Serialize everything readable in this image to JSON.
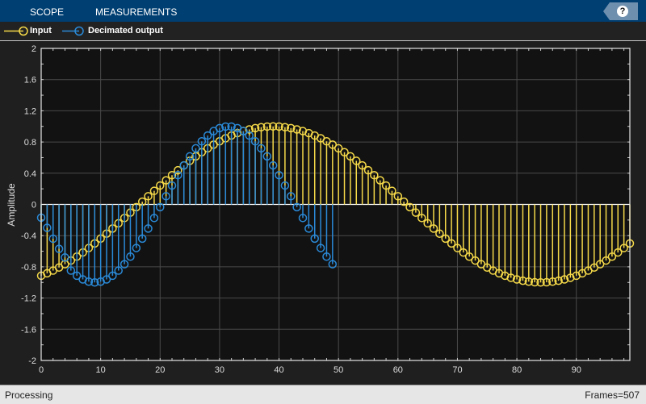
{
  "toolbar": {
    "tabs": [
      {
        "label": "SCOPE"
      },
      {
        "label": "MEASUREMENTS"
      }
    ],
    "help_label": "?"
  },
  "legend": {
    "items": [
      {
        "label": "Input",
        "color": "#f5d949"
      },
      {
        "label": "Decimated output",
        "color": "#2a8ad8"
      }
    ]
  },
  "status": {
    "left": "Processing",
    "right": "Frames=507"
  },
  "chart_data": {
    "type": "stem",
    "ylabel": "Amplitude",
    "xlim": [
      0,
      99
    ],
    "ylim": [
      -2,
      2
    ],
    "xticks": [
      0,
      10,
      20,
      30,
      40,
      50,
      60,
      70,
      80,
      90
    ],
    "yticks": [
      -2,
      -1.6,
      -1.2,
      -0.8,
      -0.4,
      0,
      0.4,
      0.8,
      1.2,
      1.6,
      2
    ],
    "grid": true,
    "legend_placement": "top",
    "series": [
      {
        "name": "Input",
        "color": "#f5d949",
        "values": [
          -0.914,
          -0.883,
          -0.848,
          -0.809,
          -0.766,
          -0.719,
          -0.669,
          -0.616,
          -0.559,
          -0.5,
          -0.438,
          -0.375,
          -0.309,
          -0.242,
          -0.174,
          -0.105,
          -0.035,
          0.035,
          0.105,
          0.174,
          0.242,
          0.309,
          0.375,
          0.438,
          0.5,
          0.559,
          0.616,
          0.669,
          0.719,
          0.766,
          0.809,
          0.848,
          0.883,
          0.914,
          0.94,
          0.961,
          0.978,
          0.99,
          0.998,
          1,
          0.998,
          0.99,
          0.978,
          0.961,
          0.94,
          0.914,
          0.883,
          0.848,
          0.809,
          0.766,
          0.719,
          0.669,
          0.616,
          0.559,
          0.5,
          0.438,
          0.375,
          0.309,
          0.242,
          0.174,
          0.105,
          0.035,
          -0.035,
          -0.105,
          -0.174,
          -0.242,
          -0.309,
          -0.375,
          -0.438,
          -0.5,
          -0.559,
          -0.616,
          -0.669,
          -0.719,
          -0.766,
          -0.809,
          -0.848,
          -0.883,
          -0.914,
          -0.94,
          -0.961,
          -0.978,
          -0.99,
          -0.998,
          -1,
          -0.998,
          -0.99,
          -0.978,
          -0.961,
          -0.94,
          -0.914,
          -0.883,
          -0.848,
          -0.809,
          -0.766,
          -0.719,
          -0.669,
          -0.616,
          -0.559,
          -0.5
        ]
      },
      {
        "name": "Decimated output",
        "color": "#2a8ad8",
        "values": [
          -0.17,
          -0.3,
          -0.44,
          -0.57,
          -0.68,
          -0.848,
          -0.914,
          -0.961,
          -0.99,
          -1,
          -0.99,
          -0.961,
          -0.914,
          -0.848,
          -0.766,
          -0.669,
          -0.559,
          -0.438,
          -0.309,
          -0.174,
          -0.035,
          0.105,
          0.242,
          0.375,
          0.5,
          0.616,
          0.719,
          0.809,
          0.883,
          0.94,
          0.978,
          0.998,
          0.998,
          0.978,
          0.94,
          0.883,
          0.809,
          0.719,
          0.616,
          0.5,
          0.375,
          0.242,
          0.105,
          -0.035,
          -0.174,
          -0.309,
          -0.438,
          -0.559,
          -0.669,
          -0.766
        ]
      }
    ]
  }
}
